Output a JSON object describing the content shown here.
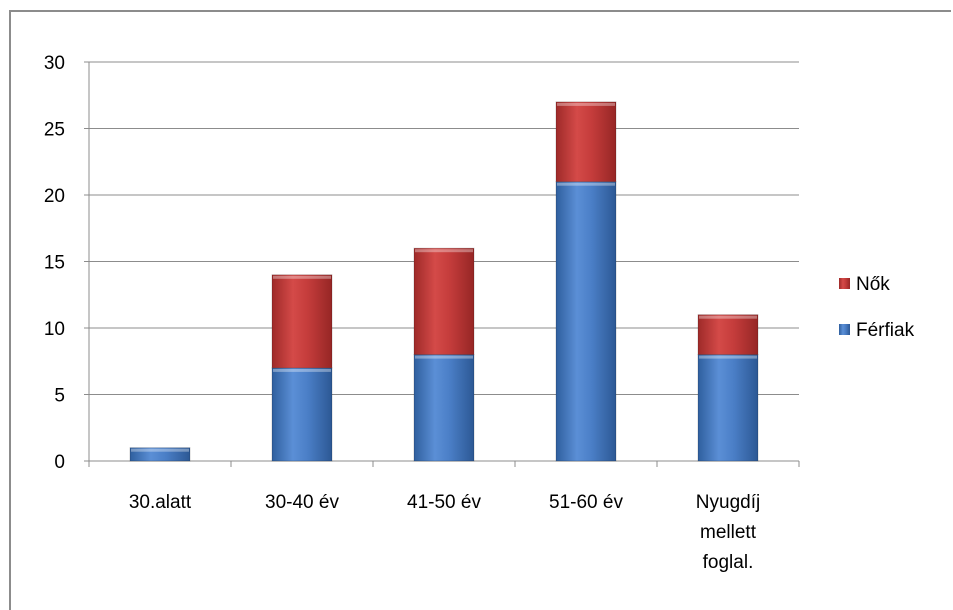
{
  "chart_data": {
    "type": "bar",
    "stacked": true,
    "categories": [
      [
        "30.alatt"
      ],
      [
        "30-40 év"
      ],
      [
        "41-50 év"
      ],
      [
        "51-60 év"
      ],
      [
        "Nyugdíj",
        "mellett",
        "foglal."
      ]
    ],
    "series": [
      {
        "name": "Férfiak",
        "color": "#4a7ebb",
        "values": [
          1,
          7,
          8,
          21,
          8
        ]
      },
      {
        "name": "Nők",
        "color": "#c0393a",
        "values": [
          0,
          7,
          8,
          6,
          3
        ]
      }
    ],
    "ylim": [
      0,
      30
    ],
    "yticks": [
      "0",
      "5",
      "10",
      "15",
      "20",
      "25",
      "30"
    ],
    "grid": true,
    "legend_position": "right",
    "legend_order": [
      "Nők",
      "Férfiak"
    ],
    "title": "",
    "xlabel": "",
    "ylabel": ""
  }
}
